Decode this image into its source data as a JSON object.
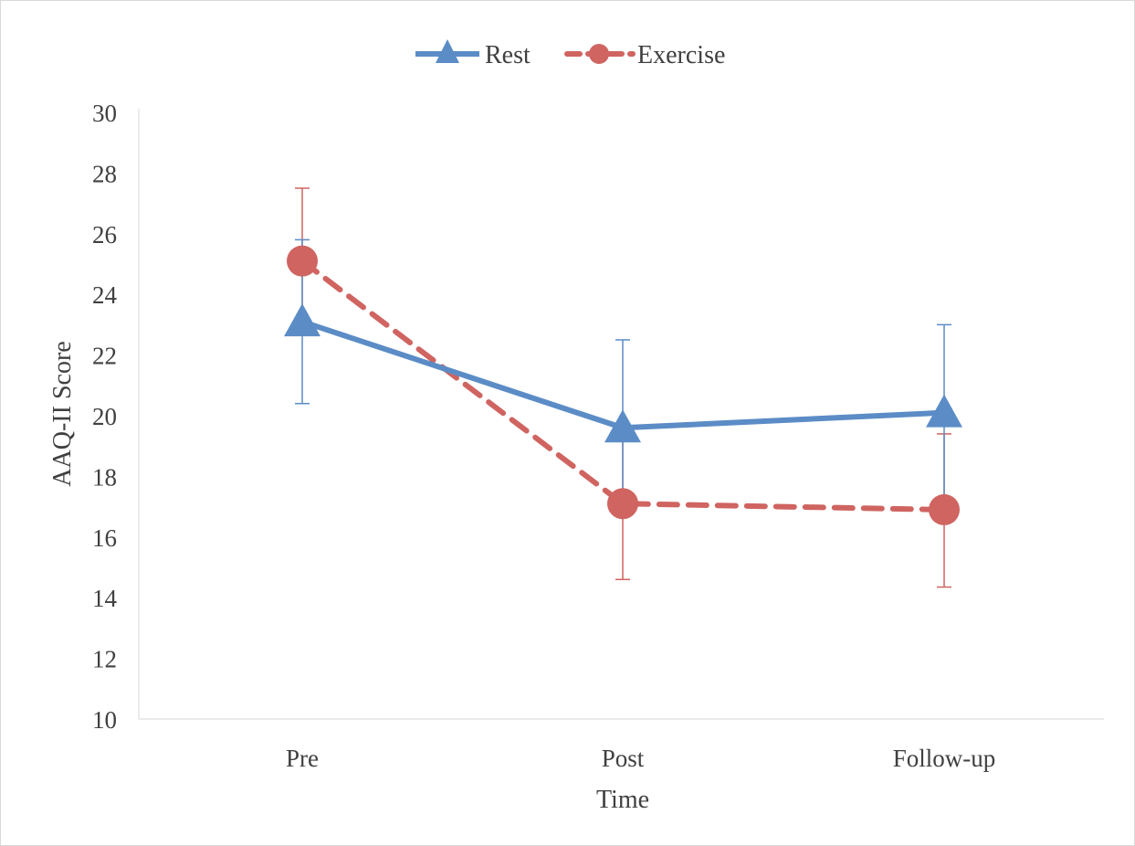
{
  "chart_data": {
    "type": "line",
    "categories": [
      "Pre",
      "Post",
      "Follow-up"
    ],
    "series": [
      {
        "name": "Rest",
        "values": [
          23.1,
          19.6,
          20.1
        ],
        "error_upper": [
          25.8,
          22.5,
          23.0
        ],
        "error_lower": [
          20.4,
          16.8,
          17.3
        ],
        "color": "#5b8cc6",
        "marker": "triangle",
        "line_style": "solid"
      },
      {
        "name": "Exercise",
        "values": [
          25.1,
          17.1,
          16.9
        ],
        "error_upper": [
          27.5,
          19.6,
          19.4
        ],
        "error_lower": [
          22.7,
          14.6,
          14.35
        ],
        "color": "#cf6461",
        "marker": "circle",
        "line_style": "dashed"
      }
    ],
    "xlabel": "Time",
    "ylabel": "AAQ-II Score",
    "ylim": [
      10,
      30
    ],
    "yticks": [
      "10",
      "12",
      "14",
      "16",
      "18",
      "20",
      "22",
      "24",
      "26",
      "28",
      "30"
    ],
    "grid": false,
    "legend_position": "top"
  }
}
